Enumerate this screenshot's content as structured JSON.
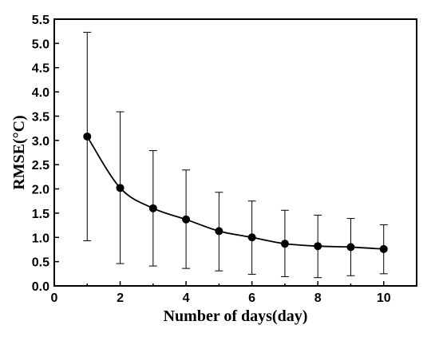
{
  "chart_data": {
    "type": "line",
    "xlabel": "Number of days(day)",
    "ylabel": "RMSE(°C)",
    "xlim": [
      0,
      11
    ],
    "ylim": [
      0,
      5.5
    ],
    "x_ticks": [
      "0",
      "2",
      "4",
      "6",
      "8",
      "10"
    ],
    "y_ticks": [
      "0.0",
      "0.5",
      "1.0",
      "1.5",
      "2.0",
      "2.5",
      "3.0",
      "3.5",
      "4.0",
      "4.5",
      "5.0",
      "5.5"
    ],
    "grid": false,
    "legend": "none",
    "series": [
      {
        "x": [
          1,
          2,
          3,
          4,
          5,
          6,
          7,
          8,
          9,
          10
        ],
        "y": [
          3.08,
          2.02,
          1.6,
          1.37,
          1.13,
          1.0,
          0.87,
          0.82,
          0.8,
          0.76
        ],
        "error_low": [
          0.93,
          0.46,
          0.41,
          0.36,
          0.31,
          0.24,
          0.19,
          0.17,
          0.21,
          0.25
        ],
        "error_high": [
          5.23,
          3.59,
          2.79,
          2.39,
          1.93,
          1.75,
          1.56,
          1.46,
          1.39,
          1.26
        ],
        "marker": "circle",
        "color": "#000000"
      }
    ]
  }
}
